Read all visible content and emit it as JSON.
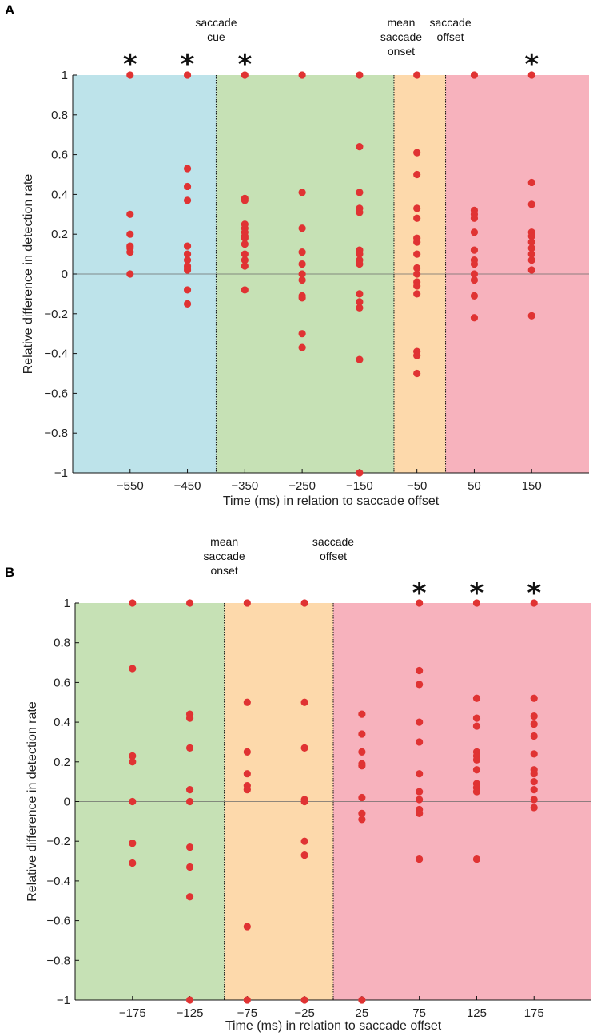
{
  "chart_data": [
    {
      "panel": "A",
      "type": "scatter",
      "xlabel": "Time (ms) in relation to saccade offset",
      "ylabel": "Relative difference in detection rate",
      "xlim": [
        -650,
        250
      ],
      "ylim": [
        -1,
        1
      ],
      "xticks": [
        -550,
        -450,
        -350,
        -250,
        -150,
        -50,
        50,
        150
      ],
      "xtick_labels": [
        "−550",
        "−450",
        "−350",
        "−250",
        "−150",
        "−50",
        "50",
        "150"
      ],
      "yticks": [
        1,
        0.8,
        0.6,
        0.4,
        0.2,
        0,
        -0.2,
        -0.4,
        -0.6,
        -0.8,
        -1
      ],
      "ytick_labels": [
        "1",
        "0.8",
        "0.6",
        "0.4",
        "0.2",
        "0",
        "−0.2",
        "−0.4",
        "−0.6",
        "−0.8",
        "−1"
      ],
      "regions": [
        {
          "x0": -650,
          "x1": -400,
          "color": "#bde3ea"
        },
        {
          "x0": -400,
          "x1": -90,
          "color": "#c6e1b5"
        },
        {
          "x0": -90,
          "x1": 0,
          "color": "#fdd9ab"
        },
        {
          "x0": 0,
          "x1": 250,
          "color": "#f7b2bd"
        }
      ],
      "vlines": [
        -400,
        -90,
        0
      ],
      "annotations": [
        {
          "x": -400,
          "lines": [
            "saccade",
            "cue"
          ]
        },
        {
          "x": -90,
          "lines": [
            "mean",
            "saccade",
            "onset"
          ]
        },
        {
          "x": 0,
          "lines": [
            "saccade",
            "offset"
          ]
        }
      ],
      "significant": [
        -550,
        -450,
        -350,
        150
      ],
      "star_label": "*",
      "marker_color": "#e03333",
      "series": [
        {
          "x": -550,
          "values": [
            1,
            0.3,
            0.2,
            0.14,
            0.13,
            0.11,
            0
          ]
        },
        {
          "x": -450,
          "values": [
            1,
            0.53,
            0.44,
            0.37,
            0.14,
            0.1,
            0.07,
            0.04,
            0.03,
            0.02,
            -0.08,
            -0.15
          ]
        },
        {
          "x": -350,
          "values": [
            1,
            0.38,
            0.37,
            0.25,
            0.23,
            0.21,
            0.19,
            0.18,
            0.15,
            0.1,
            0.07,
            0.04,
            -0.08
          ]
        },
        {
          "x": -250,
          "values": [
            1,
            0.41,
            0.23,
            0.11,
            0.05,
            0,
            -0.03,
            -0.11,
            -0.12,
            -0.3,
            -0.37
          ]
        },
        {
          "x": -150,
          "values": [
            1,
            0.64,
            0.41,
            0.33,
            0.31,
            0.12,
            0.1,
            0.07,
            0.05,
            -0.1,
            -0.14,
            -0.17,
            -0.43,
            -1
          ]
        },
        {
          "x": -50,
          "values": [
            1,
            0.61,
            0.5,
            0.33,
            0.28,
            0.18,
            0.16,
            0.1,
            0.03,
            0,
            -0.04,
            -0.06,
            -0.1,
            -0.39,
            -0.41,
            -0.5
          ]
        },
        {
          "x": 50,
          "values": [
            1,
            0.32,
            0.3,
            0.28,
            0.21,
            0.12,
            0.07,
            0.05,
            0,
            -0.03,
            -0.11,
            -0.22
          ]
        },
        {
          "x": 150,
          "values": [
            1,
            0.46,
            0.35,
            0.21,
            0.19,
            0.16,
            0.13,
            0.1,
            0.07,
            0.02,
            -0.21
          ]
        }
      ]
    },
    {
      "panel": "B",
      "type": "scatter",
      "xlabel": "Time (ms) in relation to saccade offset",
      "ylabel": "Relative difference in detection rate",
      "xlim": [
        -225,
        225
      ],
      "ylim": [
        -1,
        1
      ],
      "xticks": [
        -175,
        -125,
        -75,
        -25,
        25,
        75,
        125,
        175
      ],
      "xtick_labels": [
        "−175",
        "−125",
        "−75",
        "−25",
        "25",
        "75",
        "125",
        "175"
      ],
      "yticks": [
        1,
        0.8,
        0.6,
        0.4,
        0.2,
        0,
        -0.2,
        -0.4,
        -0.6,
        -0.8,
        -1
      ],
      "ytick_labels": [
        "1",
        "0.8",
        "0.6",
        "0.4",
        "0.2",
        "0",
        "−0.2",
        "−0.4",
        "−0.6",
        "−0.8",
        "−1"
      ],
      "regions": [
        {
          "x0": -225,
          "x1": -95,
          "color": "#c6e1b5"
        },
        {
          "x0": -95,
          "x1": 0,
          "color": "#fdd9ab"
        },
        {
          "x0": 0,
          "x1": 225,
          "color": "#f7b2bd"
        }
      ],
      "vlines": [
        -95,
        0
      ],
      "annotations": [
        {
          "x": -95,
          "lines": [
            "mean",
            "saccade",
            "onset"
          ]
        },
        {
          "x": 0,
          "lines": [
            "saccade",
            "offset"
          ]
        }
      ],
      "significant": [
        75,
        125,
        175
      ],
      "star_label": "*",
      "marker_color": "#e03333",
      "series": [
        {
          "x": -175,
          "values": [
            1,
            0.67,
            0.23,
            0.2,
            0,
            -0.21,
            -0.31
          ]
        },
        {
          "x": -125,
          "values": [
            1,
            0.44,
            0.42,
            0.27,
            0.06,
            0,
            -0.23,
            -0.33,
            -0.48,
            -1
          ]
        },
        {
          "x": -75,
          "values": [
            1,
            0.5,
            0.25,
            0.14,
            0.08,
            0.06,
            -0.63,
            -1
          ]
        },
        {
          "x": -25,
          "values": [
            1,
            0.5,
            0.27,
            0.01,
            0,
            -0.2,
            -0.27,
            -1
          ]
        },
        {
          "x": 25,
          "values": [
            0.44,
            0.34,
            0.25,
            0.19,
            0.18,
            0.02,
            -0.06,
            -0.09,
            -1
          ]
        },
        {
          "x": 75,
          "values": [
            1,
            0.66,
            0.59,
            0.4,
            0.3,
            0.14,
            0.05,
            0.01,
            -0.04,
            -0.06,
            -0.29
          ]
        },
        {
          "x": 125,
          "values": [
            1,
            0.52,
            0.42,
            0.38,
            0.25,
            0.23,
            0.21,
            0.16,
            0.09,
            0.07,
            0.05,
            -0.29
          ]
        },
        {
          "x": 175,
          "values": [
            1,
            0.52,
            0.43,
            0.39,
            0.33,
            0.24,
            0.16,
            0.14,
            0.1,
            0.06,
            0.01,
            -0.03
          ]
        }
      ]
    }
  ]
}
